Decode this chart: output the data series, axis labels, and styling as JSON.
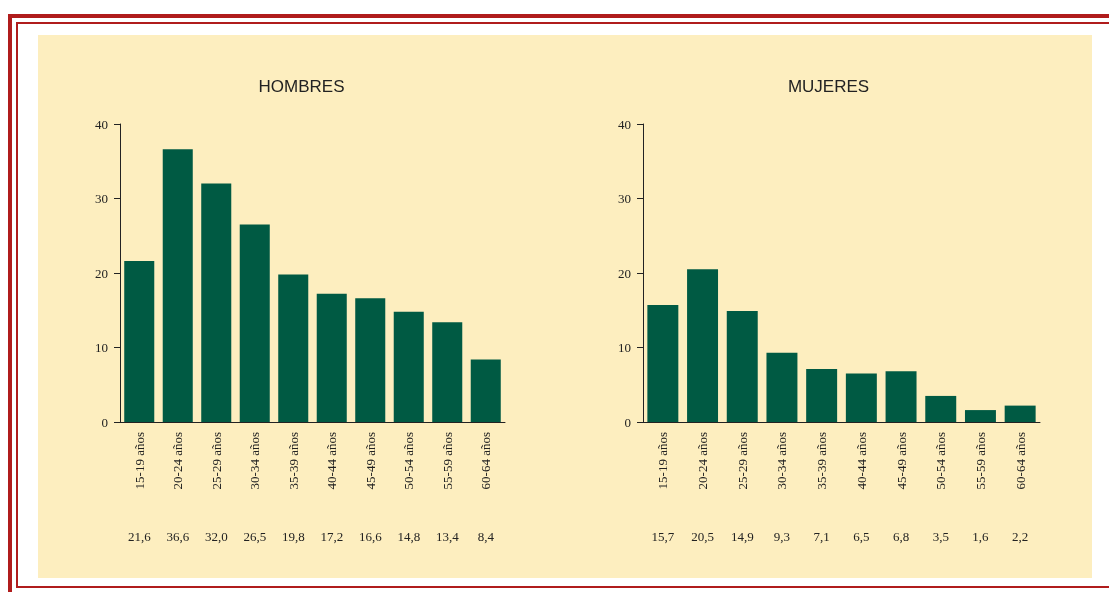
{
  "chart_data": [
    {
      "type": "bar",
      "title": "HOMBRES",
      "categories": [
        "15-19 años",
        "20-24 años",
        "25-29 años",
        "30-34 años",
        "35-39 años",
        "40-44 años",
        "45-49 años",
        "50-54 años",
        "55-59 años",
        "60-64 años"
      ],
      "values": [
        21.6,
        36.6,
        32.0,
        26.5,
        19.8,
        17.2,
        16.6,
        14.8,
        13.4,
        8.4
      ],
      "value_labels": [
        "21,6",
        "36,6",
        "32,0",
        "26,5",
        "19,8",
        "17,2",
        "16,6",
        "14,8",
        "13,4",
        "8,4"
      ],
      "color": "#005a43",
      "ylim": [
        0,
        40
      ],
      "yticks": [
        0,
        10,
        20,
        30,
        40
      ]
    },
    {
      "type": "bar",
      "title": "MUJERES",
      "categories": [
        "15-19 años",
        "20-24 años",
        "25-29 años",
        "30-34 años",
        "35-39 años",
        "40-44 años",
        "45-49 años",
        "50-54 años",
        "55-59 años",
        "60-64 años"
      ],
      "values": [
        15.7,
        20.5,
        14.9,
        9.3,
        7.1,
        6.5,
        6.8,
        3.5,
        1.6,
        2.2
      ],
      "value_labels": [
        "15,7",
        "20,5",
        "14,9",
        "9,3",
        "7,1",
        "6,5",
        "6,8",
        "3,5",
        "1,6",
        "2,2"
      ],
      "color": "#005a43",
      "ylim": [
        0,
        40
      ],
      "yticks": [
        0,
        10,
        20,
        30,
        40
      ]
    }
  ]
}
